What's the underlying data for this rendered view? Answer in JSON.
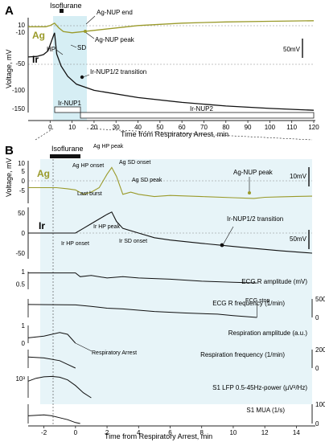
{
  "colors": {
    "ag": "#9a9a2a",
    "ir": "#111111",
    "shade": "#d6eef4",
    "axis": "#222222"
  },
  "panel_a": {
    "letter": "A",
    "isoflurane_label": "Isoflurane",
    "ag_label": "Ag",
    "ir_label": "Ir",
    "y_title": "Voltage, mV",
    "x_title": "Time from Respiratory Arrest, min",
    "scale_label": "50mV",
    "nup1_label": "Ir-NUP1",
    "nup2_label": "Ir-NUP2",
    "annotations": {
      "hp": "HP",
      "sd": "SD",
      "ag_nup_end": "Ag-NUP end",
      "ag_nup_peak": "Ag-NUP peak",
      "ir_transition": "Ir-NUP1/2 transition"
    }
  },
  "panel_b": {
    "letter": "B",
    "isoflurane_label": "Isoflurane",
    "ag_label": "Ag",
    "ir_label": "Ir",
    "y_title": "Voltage, mV",
    "x_title": "Time from Respiratory Arrest, min",
    "ag_scale": "10mV",
    "ir_scale": "50mV",
    "annotations": {
      "ag_hp_onset": "Ag HP onset",
      "ag_hp_peak": "Ag HP peak",
      "ag_sd_onset": "Ag SD onset",
      "ag_sd_peak": "Ag SD peak",
      "last_burst": "Last burst",
      "ag_nup_peak": "Ag-NUP peak",
      "ir_hp_onset": "Ir HP onset",
      "ir_hp_peak": "Ir HP peak",
      "ir_sd_onset": "Ir SD onset",
      "ir_transition": "Ir-NUP1/2 transition",
      "ecg_stop": "ECG stop",
      "resp_arrest": "Respiratory Arrest"
    },
    "physio_labels": {
      "ecg_amp": "ECG R amplitude (mV)",
      "ecg_freq": "ECG R frequency (1/min)",
      "resp_amp": "Respiration amplitude (a.u.)",
      "resp_freq": "Respiration frequency (1/min)",
      "lfp": "S1 LFP 0.5-45Hz-power (µV²/Hz)",
      "mua": "S1 MUA (1/s)"
    }
  },
  "chart_data": [
    {
      "type": "line",
      "panel": "A",
      "xlabel": "Time from Respiratory Arrest, min",
      "ylabel": "Voltage, mV",
      "xlim": [
        -10,
        120
      ],
      "ylim": [
        -155,
        15
      ],
      "xticks": [
        0,
        10,
        20,
        30,
        40,
        50,
        60,
        70,
        80,
        90,
        100,
        110,
        120
      ],
      "yticks": [
        -150,
        -100,
        -50,
        -10,
        10
      ],
      "series": [
        {
          "name": "Ag",
          "x": [
            -10,
            -2,
            0,
            2,
            4,
            6,
            10,
            20,
            40,
            60,
            80,
            100,
            120
          ],
          "y": [
            0,
            0,
            2,
            6,
            -2,
            -8,
            -10,
            -6,
            2,
            6,
            8,
            9,
            10
          ]
        },
        {
          "name": "Ir",
          "x": [
            -10,
            -6,
            -3,
            -1,
            0,
            1,
            2,
            3,
            5,
            8,
            12,
            20,
            40,
            60,
            80,
            100,
            120
          ],
          "y": [
            -50,
            -49,
            -46,
            -40,
            -30,
            -20,
            -10,
            -45,
            -65,
            -82,
            -95,
            -105,
            -117,
            -125,
            -131,
            -135,
            -138
          ]
        }
      ],
      "events": [
        {
          "name": "Ir-NUP1",
          "start": 0,
          "end": 8
        },
        {
          "name": "Ir-NUP2",
          "start": 8,
          "end": 120
        }
      ]
    },
    {
      "type": "line",
      "panel": "B-Ag",
      "xlabel": "",
      "ylabel": "Voltage, mV",
      "xlim": [
        -3,
        15
      ],
      "ylim": [
        -7,
        12
      ],
      "yticks": [
        -5,
        0,
        5,
        10
      ],
      "series": [
        {
          "name": "Ag",
          "x": [
            -3,
            -2,
            -1.2,
            -0.5,
            0,
            0.5,
            1,
            1.5,
            2,
            2.3,
            2.6,
            3,
            3.5,
            4,
            5,
            6,
            8,
            10,
            11.3,
            12,
            13,
            14,
            15
          ],
          "y": [
            0,
            0,
            0,
            -0.5,
            -1,
            -3,
            -2,
            0,
            6,
            9,
            5,
            -3,
            -2,
            -3,
            -4,
            -3.5,
            -4,
            -4.5,
            -4.8,
            -4.3,
            -4.1,
            -3.9,
            -3.8
          ]
        }
      ]
    },
    {
      "type": "line",
      "panel": "B-Ir",
      "xlabel": "",
      "ylabel": "Voltage, mV",
      "xlim": [
        -3,
        15
      ],
      "ylim": [
        -55,
        55
      ],
      "yticks": [
        -50,
        0,
        50
      ],
      "series": [
        {
          "name": "Ir",
          "x": [
            -3,
            -1,
            0,
            0.5,
            1,
            1.5,
            2,
            2.3,
            2.6,
            3,
            4,
            5,
            6,
            8,
            9.5,
            11,
            13,
            15
          ],
          "y": [
            0,
            0,
            0,
            10,
            20,
            30,
            40,
            45,
            25,
            10,
            0,
            -10,
            -15,
            -22,
            -27,
            -32,
            -38,
            -43
          ]
        }
      ]
    },
    {
      "type": "line",
      "panel": "B-physiology",
      "xlabel": "Time from Respiratory Arrest, min",
      "xlim": [
        -3,
        15
      ],
      "xticks": [
        -2,
        0,
        2,
        4,
        6,
        8,
        10,
        12,
        14
      ],
      "series": [
        {
          "name": "ECG R amplitude (mV)",
          "ylim": [
            0.3,
            1.0
          ],
          "yticks": [
            0.5,
            1.0
          ],
          "x": [
            -3,
            -1,
            0,
            0.3,
            1,
            2,
            3,
            4,
            6,
            8,
            10,
            11.5
          ],
          "y": [
            0.95,
            0.95,
            0.95,
            0.8,
            0.85,
            0.75,
            0.8,
            0.75,
            0.7,
            0.62,
            0.58,
            0.55
          ]
        },
        {
          "name": "ECG R frequency (1/min)",
          "ylim": [
            0,
            500
          ],
          "yticks": [
            0,
            500
          ],
          "x": [
            -3,
            0,
            1,
            2,
            3,
            5,
            7,
            9,
            10,
            11.5
          ],
          "y": [
            350,
            340,
            300,
            250,
            230,
            160,
            120,
            90,
            50,
            0
          ]
        },
        {
          "name": "Respiration amplitude (a.u.)",
          "ylim": [
            0,
            1.0
          ],
          "yticks": [
            0,
            1.0
          ],
          "x": [
            -3,
            -2,
            -1,
            -0.5,
            0
          ],
          "y": [
            0.3,
            0.4,
            0.6,
            0.5,
            0
          ]
        },
        {
          "name": "Respiration frequency (1/min)",
          "ylim": [
            0,
            200
          ],
          "yticks": [
            0,
            200
          ],
          "x": [
            -3,
            -2,
            -1,
            -0.5,
            0
          ],
          "y": [
            120,
            110,
            80,
            40,
            0
          ]
        },
        {
          "name": "S1 LFP 0.5-45Hz-power (µV²/Hz)",
          "scale": "log",
          "yticks": [
            "10³"
          ],
          "x": [
            -3,
            -2.5,
            -2,
            -1.5,
            -1,
            -0.5,
            0,
            0.5,
            1
          ],
          "y": [
            200,
            500,
            800,
            900,
            700,
            300,
            50,
            5,
            1
          ]
        },
        {
          "name": "S1 MUA (1/s)",
          "ylim": [
            0,
            100
          ],
          "yticks": [
            0,
            100
          ],
          "x": [
            -3,
            -2,
            -1.5,
            -1,
            -0.5,
            0,
            0.3
          ],
          "y": [
            40,
            45,
            40,
            30,
            20,
            5,
            0
          ]
        }
      ],
      "markers": [
        {
          "name": "ECG stop",
          "x": 11.5
        },
        {
          "name": "Respiratory Arrest",
          "x": 0
        },
        {
          "name": "Isoflurane off",
          "x": -1.3
        }
      ]
    }
  ]
}
